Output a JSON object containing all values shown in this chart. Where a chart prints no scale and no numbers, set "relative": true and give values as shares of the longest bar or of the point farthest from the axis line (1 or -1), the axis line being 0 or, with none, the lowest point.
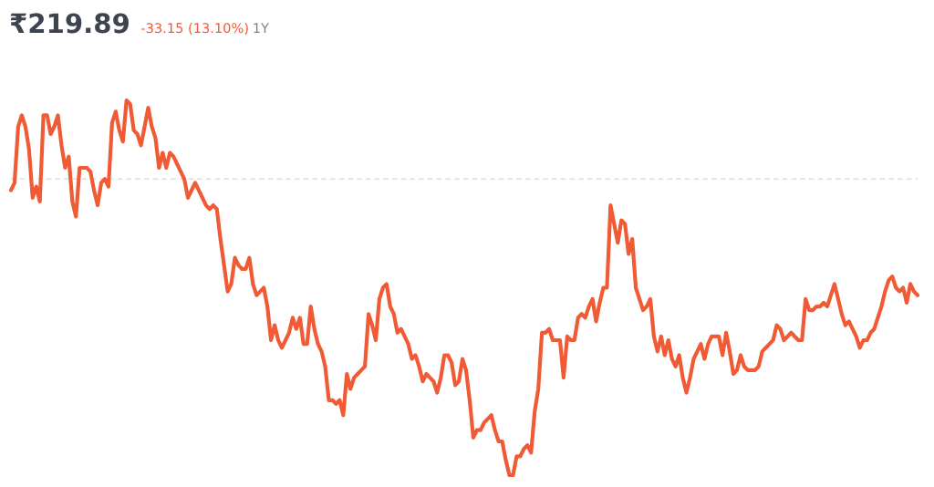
{
  "chart_data": {
    "type": "line",
    "title": "₹219.89",
    "subtitle": "-33.15 (13.10%)",
    "annotations": [
      "1Y"
    ],
    "relative": true,
    "categories": [
      null,
      null,
      null,
      null,
      null,
      null,
      null,
      null,
      null,
      null,
      null,
      null,
      null,
      null,
      null,
      null,
      null,
      null,
      null,
      null,
      null,
      null,
      null,
      null,
      null,
      null,
      null,
      null,
      null,
      null,
      null,
      null,
      null,
      null,
      null,
      null,
      null,
      null,
      null,
      null,
      null,
      null,
      null,
      null,
      null,
      null,
      null,
      null,
      null,
      null,
      null,
      null,
      null,
      null,
      null,
      null,
      null,
      null,
      null,
      null,
      null,
      null,
      null,
      null,
      null,
      null,
      null,
      null,
      null,
      null,
      null,
      null,
      null,
      null,
      null,
      null,
      null,
      null,
      null,
      null,
      null,
      null,
      null,
      null,
      null,
      null,
      null,
      null,
      null,
      null,
      null,
      null,
      null,
      null,
      null,
      null,
      null,
      null,
      null,
      null,
      null,
      null,
      null,
      null,
      null,
      null,
      null,
      null,
      null,
      null,
      null,
      null,
      null,
      null,
      null,
      null,
      null,
      null,
      null,
      null,
      null,
      null,
      null,
      null,
      null,
      null,
      null,
      null,
      null,
      null,
      null,
      null,
      null,
      null,
      null,
      null,
      null,
      null,
      null,
      null,
      null,
      null,
      null,
      null,
      null,
      null,
      null,
      null,
      null,
      null,
      null,
      null,
      null,
      null,
      null,
      null,
      null,
      null,
      null,
      null,
      null,
      null,
      null,
      null,
      null,
      null,
      null,
      null,
      null,
      null,
      null,
      null,
      null,
      null,
      null,
      null,
      null,
      null,
      null,
      null,
      null,
      null,
      null,
      null,
      null,
      null,
      null,
      null,
      null,
      null,
      null,
      null,
      null,
      null,
      null,
      null,
      null,
      null,
      null,
      null,
      null,
      null,
      null,
      null,
      null,
      null,
      null,
      null,
      null,
      null,
      null,
      null,
      null,
      null,
      null,
      null,
      null,
      null,
      null,
      null,
      null,
      null,
      null,
      null,
      null,
      null,
      null,
      null,
      null,
      null,
      null,
      null,
      null,
      null,
      null,
      null,
      null,
      null,
      null,
      null,
      null,
      null,
      null,
      null,
      null,
      null,
      null,
      null,
      null,
      null,
      null,
      null
    ],
    "series": [
      {
        "color": "#f05a35",
        "values": [
          0.76,
          0.78,
          0.93,
          0.96,
          0.93,
          0.87,
          0.74,
          0.77,
          0.73,
          0.96,
          0.96,
          0.91,
          0.93,
          0.96,
          0.88,
          0.82,
          0.85,
          0.73,
          0.69,
          0.82,
          0.82,
          0.82,
          0.81,
          0.76,
          0.72,
          0.78,
          0.79,
          0.77,
          0.94,
          0.97,
          0.92,
          0.89,
          1.0,
          0.99,
          0.92,
          0.91,
          0.88,
          0.93,
          0.98,
          0.93,
          0.9,
          0.82,
          0.86,
          0.82,
          0.86,
          0.85,
          0.83,
          0.81,
          0.79,
          0.74,
          0.76,
          0.78,
          0.76,
          0.74,
          0.72,
          0.71,
          0.72,
          0.71,
          0.63,
          0.56,
          0.49,
          0.51,
          0.58,
          0.56,
          0.55,
          0.55,
          0.58,
          0.51,
          0.48,
          0.49,
          0.5,
          0.45,
          0.36,
          0.4,
          0.36,
          0.34,
          0.36,
          0.38,
          0.42,
          0.39,
          0.42,
          0.35,
          0.35,
          0.45,
          0.39,
          0.35,
          0.33,
          0.29,
          0.2,
          0.2,
          0.19,
          0.2,
          0.16,
          0.27,
          0.23,
          0.26,
          0.27,
          0.28,
          0.29,
          0.43,
          0.4,
          0.36,
          0.47,
          0.5,
          0.51,
          0.45,
          0.43,
          0.38,
          0.39,
          0.37,
          0.35,
          0.31,
          0.32,
          0.29,
          0.25,
          0.27,
          0.26,
          0.25,
          0.22,
          0.26,
          0.32,
          0.32,
          0.3,
          0.24,
          0.25,
          0.31,
          0.28,
          0.2,
          0.1,
          0.12,
          0.12,
          0.14,
          0.15,
          0.16,
          0.12,
          0.09,
          0.09,
          0.04,
          0.0,
          0.0,
          0.05,
          0.05,
          0.07,
          0.08,
          0.06,
          0.17,
          0.23,
          0.38,
          0.38,
          0.39,
          0.36,
          0.36,
          0.36,
          0.26,
          0.37,
          0.36,
          0.36,
          0.42,
          0.43,
          0.42,
          0.45,
          0.47,
          0.41,
          0.46,
          0.5,
          0.5,
          0.72,
          0.67,
          0.62,
          0.68,
          0.67,
          0.59,
          0.63,
          0.5,
          0.47,
          0.44,
          0.45,
          0.47,
          0.37,
          0.33,
          0.37,
          0.32,
          0.36,
          0.31,
          0.29,
          0.32,
          0.26,
          0.22,
          0.26,
          0.31,
          0.33,
          0.35,
          0.31,
          0.35,
          0.37,
          0.37,
          0.37,
          0.32,
          0.38,
          0.33,
          0.27,
          0.28,
          0.32,
          0.29,
          0.28,
          0.28,
          0.28,
          0.29,
          0.33,
          0.34,
          0.35,
          0.36,
          0.4,
          0.39,
          0.36,
          0.37,
          0.38,
          0.37,
          0.36,
          0.36,
          0.47,
          0.44,
          0.44,
          0.45,
          0.45,
          0.46,
          0.45,
          0.48,
          0.51,
          0.47,
          0.43,
          0.4,
          0.41,
          0.39,
          0.37,
          0.34,
          0.36,
          0.36,
          0.38,
          0.39,
          0.42,
          0.45,
          0.49,
          0.52,
          0.53,
          0.5,
          0.49,
          0.5,
          0.46,
          0.51,
          0.49,
          0.48
        ]
      }
    ],
    "ref_lines": [
      {
        "axis": "y",
        "value": 0.79,
        "color": "#dddddd",
        "line_style": "dashed"
      }
    ]
  }
}
